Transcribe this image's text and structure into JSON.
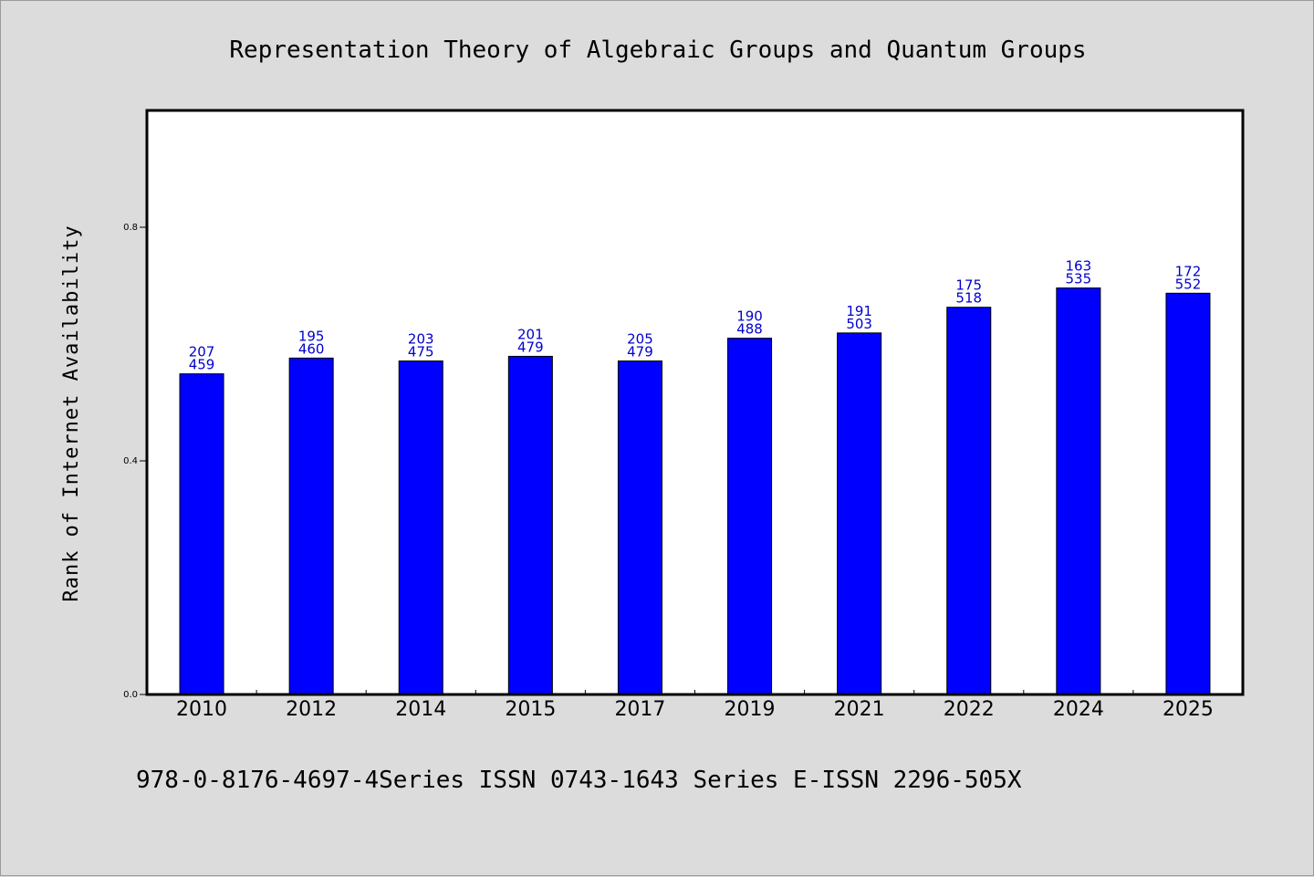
{
  "chart_data": {
    "type": "bar",
    "title": "Representation Theory of Algebraic Groups and Quantum Groups",
    "ylabel": "Rank of Internet Availability",
    "xlabel": "",
    "categories": [
      "2010",
      "2012",
      "2014",
      "2015",
      "2017",
      "2019",
      "2021",
      "2022",
      "2024",
      "2025"
    ],
    "values": [
      0.549,
      0.576,
      0.571,
      0.579,
      0.571,
      0.61,
      0.619,
      0.663,
      0.696,
      0.687
    ],
    "labels_top": [
      "207",
      "195",
      "203",
      "201",
      "205",
      "190",
      "191",
      "175",
      "163",
      "172"
    ],
    "labels_bottom": [
      "459",
      "460",
      "475",
      "479",
      "479",
      "488",
      "503",
      "518",
      "535",
      "552"
    ],
    "ylim": [
      0,
      1.0
    ],
    "yticks": [
      "0.0",
      "0.4",
      "0.8"
    ],
    "ytick_values": [
      0,
      0.4,
      0.8
    ],
    "grid": false,
    "bar_color": "#0000ff",
    "label_color": "#0000cc",
    "footnote": "978-0-8176-4697-4Series ISSN 0743-1643 Series E-ISSN 2296-505X"
  }
}
